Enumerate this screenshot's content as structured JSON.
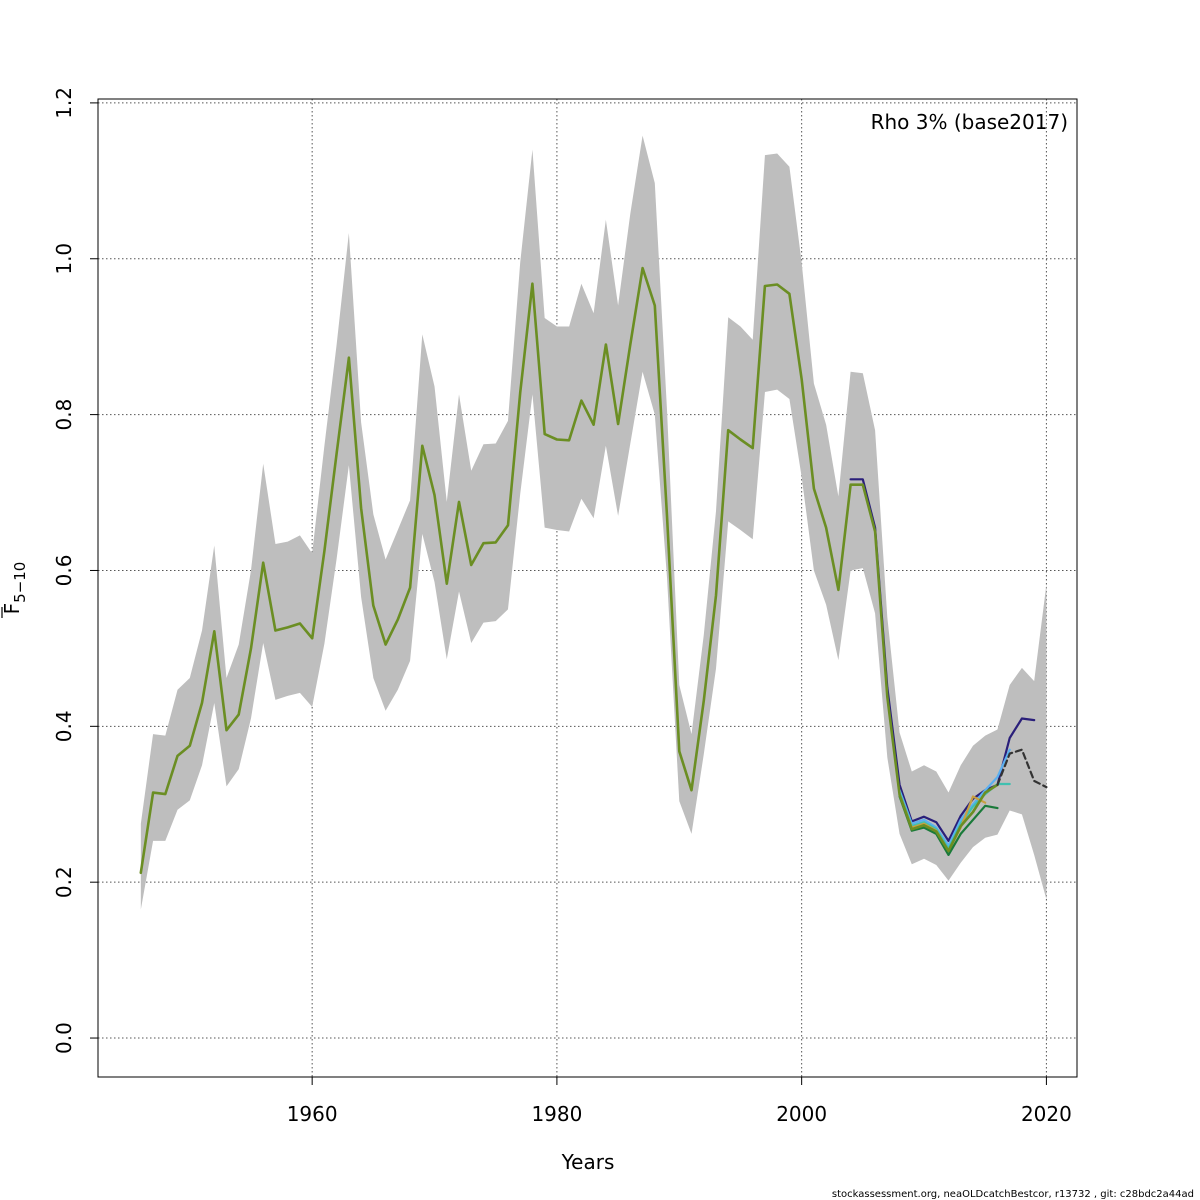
{
  "chart_data": {
    "type": "line",
    "title": "",
    "xlabel": "Years",
    "ylabel": "F",
    "ylabel_subscript": "5−10",
    "annotation": "Rho 3% (base2017)",
    "footer": "stockassessment.org, neaOLDcatchBestcor, r13732 , git: c28bdc2a44ad",
    "xlim": [
      1942.5,
      2022.5
    ],
    "ylim": [
      -0.05,
      1.205
    ],
    "x_ticks": [
      1960,
      1980,
      2000,
      2020
    ],
    "x_tick_labels": [
      "1960",
      "1980",
      "2000",
      "2020"
    ],
    "y_ticks": [
      0.0,
      0.2,
      0.4,
      0.6,
      0.8,
      1.0,
      1.2
    ],
    "y_tick_labels": [
      "0.0",
      "0.2",
      "0.4",
      "0.6",
      "0.8",
      "1.0",
      "1.2"
    ],
    "grid": true,
    "colors": {
      "band": "#bebebe",
      "base": "#6b8e23",
      "peel_dashed": "#333333",
      "retro_1": "#2a1f7a",
      "retro_2": "#5bb0f0",
      "retro_3": "#40c0b0",
      "retro_4": "#c8a040",
      "retro_5": "#1a7a3a"
    },
    "confidence_band": {
      "x": [
        1946,
        1947,
        1948,
        1949,
        1950,
        1951,
        1952,
        1953,
        1954,
        1955,
        1956,
        1957,
        1958,
        1959,
        1960,
        1961,
        1962,
        1963,
        1964,
        1965,
        1966,
        1967,
        1968,
        1969,
        1970,
        1971,
        1972,
        1973,
        1974,
        1975,
        1976,
        1977,
        1978,
        1979,
        1980,
        1981,
        1982,
        1983,
        1984,
        1985,
        1986,
        1987,
        1988,
        1989,
        1990,
        1991,
        1992,
        1993,
        1994,
        1995,
        1996,
        1997,
        1998,
        1999,
        2000,
        2001,
        2002,
        2003,
        2004,
        2005,
        2006,
        2007,
        2008,
        2009,
        2010,
        2011,
        2012,
        2013,
        2014,
        2015,
        2016,
        2017,
        2018,
        2019,
        2020
      ],
      "lower": [
        0.165,
        0.253,
        0.253,
        0.293,
        0.305,
        0.35,
        0.43,
        0.323,
        0.345,
        0.41,
        0.507,
        0.434,
        0.439,
        0.443,
        0.425,
        0.506,
        0.615,
        0.735,
        0.566,
        0.462,
        0.42,
        0.447,
        0.484,
        0.647,
        0.585,
        0.486,
        0.573,
        0.507,
        0.533,
        0.535,
        0.55,
        0.698,
        0.826,
        0.655,
        0.652,
        0.65,
        0.692,
        0.667,
        0.76,
        0.67,
        0.763,
        0.855,
        0.8,
        0.59,
        0.304,
        0.262,
        0.364,
        0.474,
        0.663,
        0.652,
        0.64,
        0.829,
        0.832,
        0.82,
        0.72,
        0.6,
        0.556,
        0.485,
        0.6,
        0.603,
        0.545,
        0.36,
        0.262,
        0.223,
        0.23,
        0.222,
        0.202,
        0.225,
        0.245,
        0.257,
        0.261,
        0.292,
        0.287,
        0.235,
        0.178
      ],
      "upper": [
        0.275,
        0.39,
        0.388,
        0.447,
        0.462,
        0.523,
        0.632,
        0.462,
        0.505,
        0.6,
        0.737,
        0.634,
        0.637,
        0.645,
        0.622,
        0.76,
        0.89,
        1.033,
        0.79,
        0.672,
        0.614,
        0.652,
        0.69,
        0.903,
        0.836,
        0.688,
        0.826,
        0.728,
        0.762,
        0.763,
        0.792,
        0.995,
        1.14,
        0.924,
        0.913,
        0.913,
        0.968,
        0.93,
        1.05,
        0.94,
        1.058,
        1.158,
        1.097,
        0.805,
        0.453,
        0.39,
        0.517,
        0.676,
        0.925,
        0.913,
        0.896,
        1.133,
        1.135,
        1.118,
        0.995,
        0.84,
        0.787,
        0.695,
        0.855,
        0.853,
        0.78,
        0.54,
        0.392,
        0.342,
        0.35,
        0.342,
        0.315,
        0.35,
        0.375,
        0.388,
        0.396,
        0.453,
        0.475,
        0.458,
        0.582
      ]
    },
    "series": [
      {
        "x": [
          1946,
          1947,
          1948,
          1949,
          1950,
          1951,
          1952,
          1953,
          1954,
          1955,
          1956,
          1957,
          1958,
          1959,
          1960,
          1961,
          1962,
          1963,
          1964,
          1965,
          1966,
          1967,
          1968,
          1969,
          1970,
          1971,
          1972,
          1973,
          1974,
          1975,
          1976,
          1977,
          1978,
          1979,
          1980,
          1981,
          1982,
          1983,
          1984,
          1985,
          1986,
          1987,
          1988,
          1989,
          1990,
          1991,
          1992,
          1993,
          1994,
          1995,
          1996,
          1997,
          1998,
          1999,
          2000,
          2001,
          2002,
          2003,
          2004,
          2005,
          2006,
          2007,
          2008,
          2009,
          2010,
          2011,
          2012,
          2013,
          2014,
          2015,
          2016,
          2017,
          2018,
          2019,
          2020
        ],
        "values": [
          0.212,
          0.315,
          0.313,
          0.362,
          0.375,
          0.43,
          0.522,
          0.395,
          0.415,
          0.5,
          0.61,
          0.523,
          0.527,
          0.532,
          0.513,
          0.625,
          0.75,
          0.873,
          0.68,
          0.555,
          0.505,
          0.537,
          0.578,
          0.76,
          0.697,
          0.583,
          0.688,
          0.607,
          0.635,
          0.636,
          0.658,
          0.828,
          0.968,
          0.775,
          0.768,
          0.767,
          0.818,
          0.787,
          0.89,
          0.788,
          0.89,
          0.988,
          0.94,
          0.67,
          0.368,
          0.318,
          0.433,
          0.568,
          0.78,
          0.768,
          0.757,
          0.965,
          0.967,
          0.955,
          0.845,
          0.705,
          0.655,
          0.575,
          0.71,
          0.71,
          0.65,
          0.438,
          0.312,
          0.268,
          0.273,
          0.265,
          0.24,
          0.272,
          0.29,
          0.315,
          0.325,
          0.365,
          0.37,
          0.33,
          0.322
        ]
      },
      {
        "x": [
          2004,
          2005,
          2006,
          2007,
          2008,
          2009,
          2010,
          2011,
          2012,
          2013,
          2014,
          2015,
          2016,
          2017,
          2018,
          2019
        ],
        "values": [
          0.717,
          0.717,
          0.655,
          0.45,
          0.325,
          0.278,
          0.284,
          0.277,
          0.253,
          0.285,
          0.307,
          0.318,
          0.325,
          0.385,
          0.41,
          0.408
        ]
      },
      {
        "x": [
          2008,
          2009,
          2010,
          2011,
          2012,
          2013,
          2014,
          2015,
          2016,
          2017
        ],
        "values": [
          0.318,
          0.275,
          0.28,
          0.27,
          0.247,
          0.28,
          0.3,
          0.318,
          0.335,
          0.37
        ]
      },
      {
        "x": [
          2008,
          2009,
          2010,
          2011,
          2012,
          2013,
          2014,
          2015,
          2016,
          2017
        ],
        "values": [
          0.315,
          0.272,
          0.277,
          0.268,
          0.243,
          0.275,
          0.297,
          0.313,
          0.326,
          0.326
        ]
      },
      {
        "x": [
          2008,
          2009,
          2010,
          2011,
          2012,
          2013,
          2014,
          2015
        ],
        "values": [
          0.313,
          0.27,
          0.275,
          0.266,
          0.24,
          0.27,
          0.31,
          0.302
        ]
      },
      {
        "x": [
          2008,
          2009,
          2010,
          2011,
          2012,
          2013,
          2014,
          2015,
          2016
        ],
        "values": [
          0.31,
          0.266,
          0.27,
          0.262,
          0.235,
          0.262,
          0.28,
          0.298,
          0.295
        ]
      }
    ]
  }
}
